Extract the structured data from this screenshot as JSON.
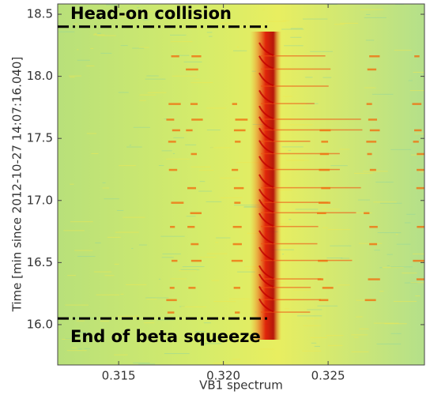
{
  "chart_data": {
    "type": "spectrogram",
    "xlabel": "VB1 spectrum",
    "ylabel": "Time [min since 2012-10-27 14:07:16.040]",
    "xlim": [
      0.31209,
      0.3296
    ],
    "ylim": [
      15.675,
      18.583
    ],
    "xticks": [
      0.315,
      {
        "value": 0.32,
        "label": "0.320"
      },
      0.325
    ],
    "yticks": [
      {
        "value": 16,
        "label": "16.0"
      },
      16.5,
      {
        "value": 17,
        "label": "17.0"
      },
      17.5,
      {
        "value": 18,
        "label": "18.0"
      },
      18.5
    ],
    "annotations": [
      {
        "text": "Head-on collision",
        "y": 18.4,
        "x_end": 0.3222
      },
      {
        "text": "End of beta squeeze",
        "y": 16.05,
        "x_end": 0.3222
      }
    ]
  }
}
